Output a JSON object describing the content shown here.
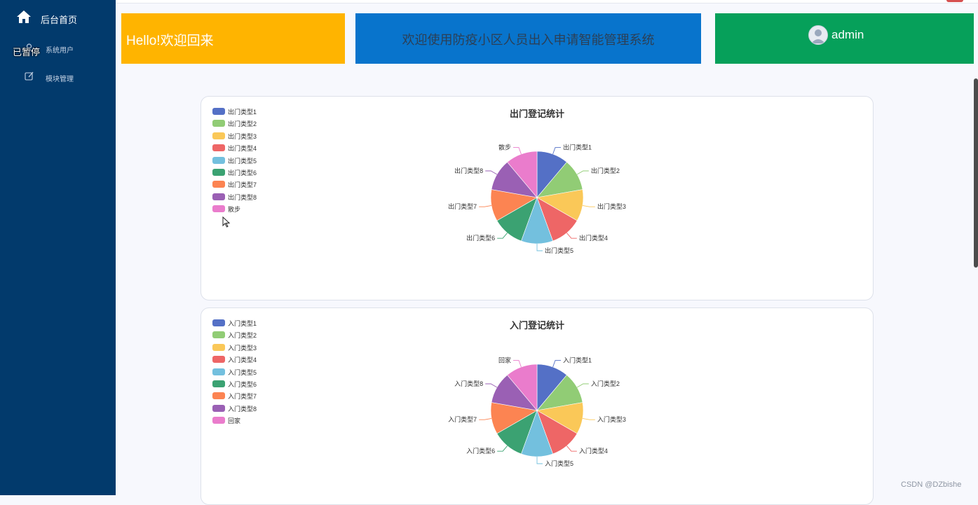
{
  "sidebar": {
    "items": [
      {
        "label": "后台首页",
        "icon": "home-icon"
      },
      {
        "label": "系统用户",
        "icon": "user-icon"
      },
      {
        "label": "模块管理",
        "icon": "edit-icon"
      }
    ],
    "overlay_text": "已暂停"
  },
  "banners": {
    "hello": "Hello!欢迎回来",
    "welcome": "欢迎使用防疫小区人员出入申请智能管理系统",
    "username": "admin"
  },
  "chart_data": [
    {
      "type": "pie",
      "title": "出门登记统计",
      "categories": [
        "出门类型1",
        "出门类型2",
        "出门类型3",
        "出门类型4",
        "出门类型5",
        "出门类型6",
        "出门类型7",
        "出门类型8",
        "散步"
      ],
      "values": [
        1,
        1,
        1,
        1,
        1,
        1,
        1,
        1,
        1
      ],
      "colors": [
        "#5470c6",
        "#91cc75",
        "#fac858",
        "#ee6666",
        "#73c0de",
        "#3ba272",
        "#fc8452",
        "#9a60b4",
        "#ea7ccc"
      ],
      "legend": "top-left"
    },
    {
      "type": "pie",
      "title": "入门登记统计",
      "categories": [
        "入门类型1",
        "入门类型2",
        "入门类型3",
        "入门类型4",
        "入门类型5",
        "入门类型6",
        "入门类型7",
        "入门类型8",
        "回家"
      ],
      "values": [
        1,
        1,
        1,
        1,
        1,
        1,
        1,
        1,
        1
      ],
      "colors": [
        "#5470c6",
        "#91cc75",
        "#fac858",
        "#ee6666",
        "#73c0de",
        "#3ba272",
        "#fc8452",
        "#9a60b4",
        "#ea7ccc"
      ],
      "legend": "top-left"
    }
  ],
  "watermark": "CSDN @DZbishe"
}
